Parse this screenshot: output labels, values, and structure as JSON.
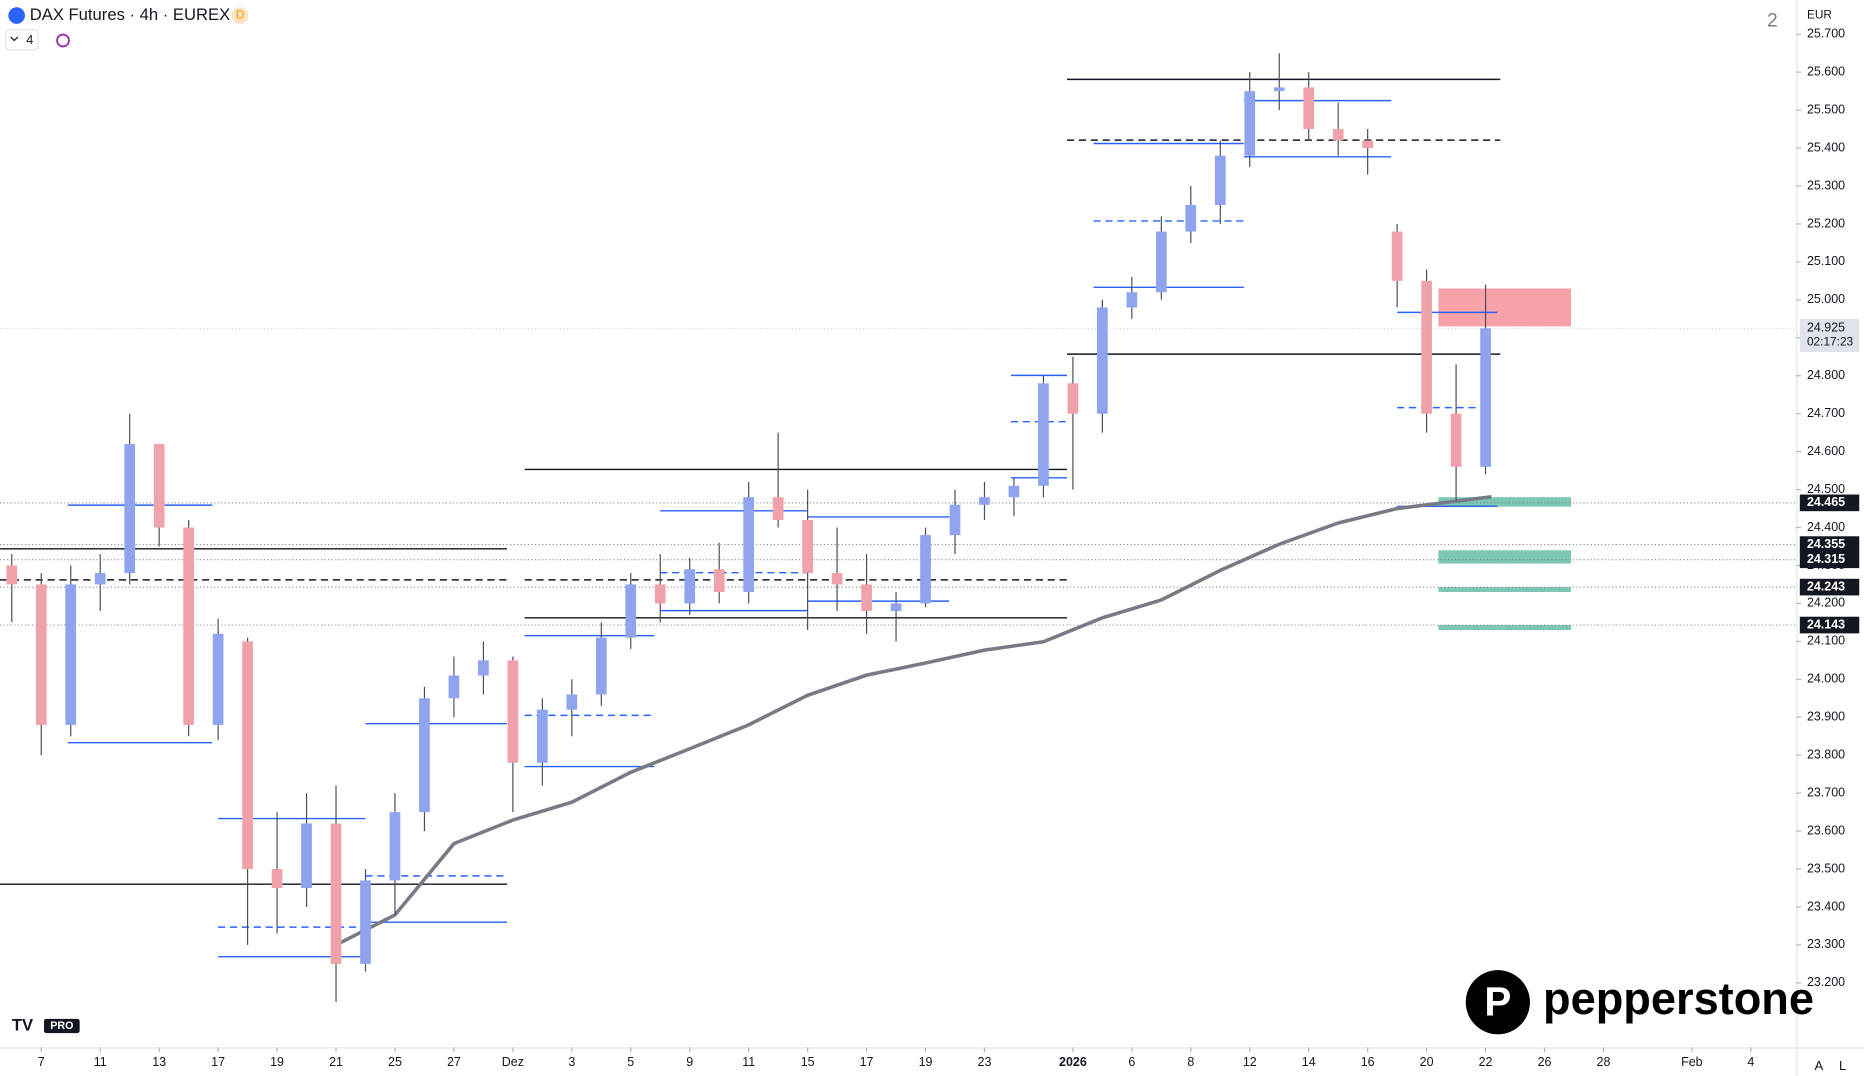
{
  "header": {
    "symbol": "DAX Futures · 4h · EUREX",
    "badge": "D",
    "indicator_count": "4",
    "layout_number": "2",
    "currency": "EUR",
    "countdown": "02:17:23",
    "logo": "pepperstone",
    "tv_badge": "PRO",
    "scale_buttons": [
      "A",
      "L"
    ]
  },
  "chart_data": {
    "type": "candlestick",
    "up_color": "#8fa3ee",
    "down_color": "#f0a2aa",
    "xlim": [
      -1.4,
      59.5
    ],
    "xticks": [
      {
        "value": 0,
        "label": "7"
      },
      {
        "value": 2,
        "label": "11"
      },
      {
        "value": 4,
        "label": "13"
      },
      {
        "value": 6,
        "label": "17"
      },
      {
        "value": 8,
        "label": "19"
      },
      {
        "value": 10,
        "label": "21"
      },
      {
        "value": 12,
        "label": "25"
      },
      {
        "value": 14,
        "label": "27"
      },
      {
        "value": 16,
        "label": "Dez"
      },
      {
        "value": 18,
        "label": "3"
      },
      {
        "value": 20,
        "label": "5"
      },
      {
        "value": 22,
        "label": "9"
      },
      {
        "value": 24,
        "label": "11"
      },
      {
        "value": 26,
        "label": "15"
      },
      {
        "value": 28,
        "label": "17"
      },
      {
        "value": 30,
        "label": "19"
      },
      {
        "value": 32,
        "label": "23"
      },
      {
        "value": 35,
        "label": "2026"
      },
      {
        "value": 37,
        "label": "6"
      },
      {
        "value": 39,
        "label": "8"
      },
      {
        "value": 41,
        "label": "12"
      },
      {
        "value": 43,
        "label": "14"
      },
      {
        "value": 45,
        "label": "16"
      },
      {
        "value": 47,
        "label": "20"
      },
      {
        "value": 49,
        "label": "22"
      },
      {
        "value": 51,
        "label": "26"
      },
      {
        "value": 53,
        "label": "28"
      },
      {
        "value": 56,
        "label": "Feb"
      },
      {
        "value": 58,
        "label": "4"
      }
    ],
    "ylim": [
      23030,
      25790
    ],
    "yticks": [
      {
        "value": 23200,
        "label": "23.200"
      },
      {
        "value": 23300,
        "label": "23.300"
      },
      {
        "value": 23400,
        "label": "23.400"
      },
      {
        "value": 23500,
        "label": "23.500"
      },
      {
        "value": 23600,
        "label": "23.600"
      },
      {
        "value": 23700,
        "label": "23.700"
      },
      {
        "value": 23800,
        "label": "23.800"
      },
      {
        "value": 23900,
        "label": "23.900"
      },
      {
        "value": 24000,
        "label": "24.000"
      },
      {
        "value": 24100,
        "label": "24.100"
      },
      {
        "value": 24200,
        "label": "24.200"
      },
      {
        "value": 24300,
        "label": "24.300"
      },
      {
        "value": 24400,
        "label": "24.400"
      },
      {
        "value": 24500,
        "label": "24.500"
      },
      {
        "value": 24600,
        "label": "24.600"
      },
      {
        "value": 24700,
        "label": "24.700"
      },
      {
        "value": 24800,
        "label": "24.800"
      },
      {
        "value": 24900,
        "label": "24.900"
      },
      {
        "value": 25000,
        "label": "25.000"
      },
      {
        "value": 25100,
        "label": "25.100"
      },
      {
        "value": 25200,
        "label": "25.200"
      },
      {
        "value": 25300,
        "label": "25.300"
      },
      {
        "value": 25400,
        "label": "25.400"
      },
      {
        "value": 25500,
        "label": "25.500"
      },
      {
        "value": 25600,
        "label": "25.600"
      },
      {
        "value": 25700,
        "label": "25.700"
      }
    ],
    "x": [
      -1,
      0,
      1,
      2,
      3,
      4,
      5,
      6,
      7,
      8,
      9,
      10,
      11,
      12,
      13,
      14,
      15,
      16,
      17,
      18,
      19,
      20,
      21,
      22,
      23,
      24,
      25,
      26,
      27,
      28,
      29,
      30,
      31,
      32,
      33,
      34,
      35,
      36,
      37,
      38,
      39,
      40,
      41,
      42,
      43,
      44,
      45,
      46,
      47,
      48,
      49
    ],
    "open": [
      24300,
      24250,
      23880,
      24250,
      24280,
      24620,
      24400,
      23880,
      24100,
      23500,
      23450,
      23620,
      23250,
      23470,
      23650,
      23950,
      24010,
      24050,
      23780,
      23920,
      23960,
      24110,
      24250,
      24200,
      24290,
      24230,
      24480,
      24420,
      24280,
      24250,
      24180,
      24200,
      24380,
      24460,
      24480,
      24510,
      24780,
      24700,
      24980,
      25020,
      25180,
      25250,
      25380,
      25550,
      25560,
      25450,
      25420,
      25180,
      25050,
      24700,
      24560
    ],
    "high": [
      24330,
      24280,
      24300,
      24330,
      24700,
      24620,
      24420,
      24160,
      24110,
      23650,
      23700,
      23720,
      23500,
      23700,
      23980,
      24060,
      24100,
      24060,
      23950,
      24000,
      24150,
      24280,
      24330,
      24320,
      24360,
      24520,
      24650,
      24500,
      24400,
      24330,
      24230,
      24400,
      24500,
      24520,
      24530,
      24800,
      24850,
      25000,
      25060,
      25220,
      25300,
      25420,
      25600,
      25650,
      25600,
      25520,
      25450,
      25200,
      25080,
      24830,
      25040
    ],
    "low": [
      24150,
      23800,
      23850,
      24180,
      24250,
      24350,
      23850,
      23840,
      23300,
      23330,
      23400,
      23150,
      23230,
      23380,
      23600,
      23900,
      23960,
      23650,
      23720,
      23850,
      23930,
      24080,
      24150,
      24170,
      24200,
      24200,
      24400,
      24130,
      24180,
      24120,
      24100,
      24190,
      24330,
      24420,
      24430,
      24480,
      24500,
      24650,
      24950,
      25000,
      25150,
      25200,
      25350,
      25500,
      25420,
      25380,
      25330,
      24980,
      24650,
      24470,
      24540
    ],
    "close": [
      24250,
      23880,
      24250,
      24280,
      24620,
      24400,
      23880,
      24120,
      23500,
      23450,
      23620,
      23250,
      23470,
      23650,
      23950,
      24010,
      24050,
      23780,
      23920,
      23960,
      24110,
      24250,
      24200,
      24290,
      24230,
      24480,
      24420,
      24280,
      24250,
      24180,
      24200,
      24380,
      24460,
      24480,
      24510,
      24780,
      24700,
      24980,
      25020,
      25180,
      25250,
      25380,
      25550,
      25560,
      25450,
      25420,
      25400,
      25050,
      24700,
      24560,
      24925
    ],
    "ma": {
      "color": "#787b86",
      "x": [
        10,
        12,
        14,
        16,
        18,
        20,
        22,
        24,
        26,
        28,
        30,
        32,
        34,
        36,
        38,
        40,
        42,
        44,
        46,
        49.2
      ],
      "values": [
        23300,
        23379,
        23567,
        23629,
        23676,
        23755,
        23817,
        23880,
        23958,
        24011,
        24043,
        24077,
        24099,
        24162,
        24209,
        24287,
        24356,
        24412,
        24450,
        24481
      ]
    },
    "levels": [
      {
        "y": 23460,
        "x": [
          -1.4,
          15.8
        ],
        "color": "#131722",
        "dash": false
      },
      {
        "y": 24344,
        "x": [
          -1.4,
          15.8
        ],
        "color": "#131722",
        "dash": false
      },
      {
        "y": 24553,
        "x": [
          16.4,
          34.8
        ],
        "color": "#131722",
        "dash": false
      },
      {
        "y": 24162,
        "x": [
          16.4,
          34.8
        ],
        "color": "#131722",
        "dash": false
      },
      {
        "y": 25581,
        "x": [
          34.8,
          49.5
        ],
        "color": "#131722",
        "dash": false
      },
      {
        "y": 24857,
        "x": [
          34.8,
          49.5
        ],
        "color": "#131722",
        "dash": false
      },
      {
        "y": 24262,
        "x": [
          -1.4,
          15.8
        ],
        "color": "#131722",
        "dash": true
      },
      {
        "y": 24262,
        "x": [
          16.4,
          34.8
        ],
        "color": "#131722",
        "dash": true
      },
      {
        "y": 25421,
        "x": [
          34.8,
          49.5
        ],
        "color": "#131722",
        "dash": true
      },
      {
        "y": 24459,
        "x": [
          0.9,
          5.8
        ],
        "color": "#2962ff",
        "dash": false
      },
      {
        "y": 23833,
        "x": [
          0.9,
          5.8
        ],
        "color": "#2962ff",
        "dash": false
      },
      {
        "y": 23633,
        "x": [
          6.0,
          11.0
        ],
        "color": "#2962ff",
        "dash": false
      },
      {
        "y": 23269,
        "x": [
          6.0,
          11.0
        ],
        "color": "#2962ff",
        "dash": false
      },
      {
        "y": 23883,
        "x": [
          11.0,
          15.8
        ],
        "color": "#2962ff",
        "dash": false
      },
      {
        "y": 23360,
        "x": [
          11.0,
          15.8
        ],
        "color": "#2962ff",
        "dash": false
      },
      {
        "y": 23770,
        "x": [
          16.4,
          20.8
        ],
        "color": "#2962ff",
        "dash": false
      },
      {
        "y": 24115,
        "x": [
          16.4,
          20.8
        ],
        "color": "#2962ff",
        "dash": false
      },
      {
        "y": 24444,
        "x": [
          21.0,
          26.0
        ],
        "color": "#2962ff",
        "dash": false
      },
      {
        "y": 24181,
        "x": [
          21.0,
          26.0
        ],
        "color": "#2962ff",
        "dash": false
      },
      {
        "y": 24428,
        "x": [
          26.0,
          30.8
        ],
        "color": "#2962ff",
        "dash": false
      },
      {
        "y": 24206,
        "x": [
          26.0,
          30.8
        ],
        "color": "#2962ff",
        "dash": false
      },
      {
        "y": 24801,
        "x": [
          32.9,
          34.8
        ],
        "color": "#2962ff",
        "dash": false
      },
      {
        "y": 24531,
        "x": [
          32.9,
          34.8
        ],
        "color": "#2962ff",
        "dash": false
      },
      {
        "y": 25033,
        "x": [
          35.7,
          40.8
        ],
        "color": "#2962ff",
        "dash": false
      },
      {
        "y": 25412,
        "x": [
          35.7,
          40.8
        ],
        "color": "#2962ff",
        "dash": false
      },
      {
        "y": 25525,
        "x": [
          40.8,
          45.8
        ],
        "color": "#2962ff",
        "dash": false
      },
      {
        "y": 25377,
        "x": [
          40.8,
          45.8
        ],
        "color": "#2962ff",
        "dash": false
      },
      {
        "y": 24967,
        "x": [
          46.0,
          49.4
        ],
        "color": "#2962ff",
        "dash": false
      },
      {
        "y": 24456,
        "x": [
          46.0,
          49.4
        ],
        "color": "#2962ff",
        "dash": false
      },
      {
        "y": 23347,
        "x": [
          6.0,
          11.0
        ],
        "color": "#2962ff",
        "dash": true
      },
      {
        "y": 23482,
        "x": [
          11.0,
          15.8
        ],
        "color": "#2962ff",
        "dash": true
      },
      {
        "y": 23905,
        "x": [
          16.4,
          20.8
        ],
        "color": "#2962ff",
        "dash": true
      },
      {
        "y": 24281,
        "x": [
          21.0,
          26.0
        ],
        "color": "#2962ff",
        "dash": true
      },
      {
        "y": 24679,
        "x": [
          32.9,
          34.8
        ],
        "color": "#2962ff",
        "dash": true
      },
      {
        "y": 25208,
        "x": [
          35.7,
          40.8
        ],
        "color": "#2962ff",
        "dash": true
      },
      {
        "y": 24716,
        "x": [
          46.0,
          49.2
        ],
        "color": "#2962ff",
        "dash": true
      }
    ],
    "zones": [
      {
        "range": [
          24930,
          25030
        ],
        "x": [
          47.4,
          51.9
        ],
        "color": "#f7a1a9"
      },
      {
        "range": [
          24455,
          24480
        ],
        "x": [
          47.4,
          51.9
        ],
        "color": "#7cc8b5"
      },
      {
        "range": [
          24305,
          24340
        ],
        "x": [
          47.4,
          51.9
        ],
        "color": "#7cc8b5"
      },
      {
        "range": [
          24230,
          24243
        ],
        "x": [
          47.4,
          51.9
        ],
        "color": "#7cc8b5"
      },
      {
        "range": [
          24130,
          24143
        ],
        "x": [
          47.4,
          51.9
        ],
        "color": "#7cc8b5"
      }
    ],
    "price_tags": [
      {
        "value": 24925,
        "label": "24.925",
        "current": true
      },
      {
        "value": 24465,
        "label": "24.465",
        "current": false
      },
      {
        "value": 24355,
        "label": "24.355",
        "current": false
      },
      {
        "value": 24315,
        "label": "24.315",
        "current": false
      },
      {
        "value": 24243,
        "label": "24.243",
        "current": false
      },
      {
        "value": 24143,
        "label": "24.143",
        "current": false
      }
    ]
  }
}
